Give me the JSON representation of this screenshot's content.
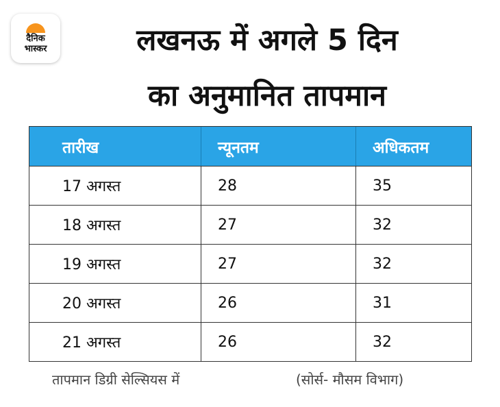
{
  "logo": {
    "line1": "दैनिक",
    "line2": "भास्कर",
    "accent": "#f7941d"
  },
  "headline": {
    "line1": "लखनऊ में अगले 5 दिन",
    "line2": "का अनुमानित तापमान"
  },
  "table": {
    "header_color": "#2aa4e6",
    "columns": [
      "तारीख",
      "न्यूनतम",
      "अधिकतम"
    ],
    "rows": [
      [
        "17 अगस्त",
        "28",
        "35"
      ],
      [
        "18 अगस्त",
        "27",
        "32"
      ],
      [
        "19 अगस्त",
        "27",
        "32"
      ],
      [
        "20 अगस्त",
        "26",
        "31"
      ],
      [
        "21 अगस्त",
        "26",
        "32"
      ]
    ]
  },
  "footer": {
    "unit_note": "तापमान डिग्री सेल्सियस में",
    "source": "(सोर्स- मौसम विभाग)"
  }
}
